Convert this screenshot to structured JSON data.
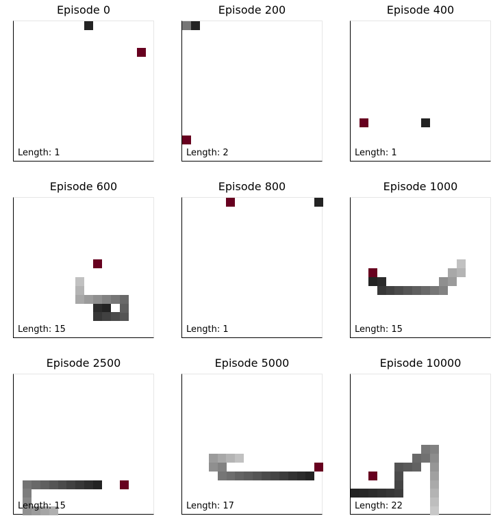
{
  "grid": {
    "cols": 16,
    "rows": 16
  },
  "colors": {
    "food": "#67001f"
  },
  "panels": [
    {
      "title": "Episode 0",
      "length_label": "Length: 1",
      "food": [
        14,
        3
      ],
      "snake": [
        [
          8,
          0,
          0.88
        ]
      ]
    },
    {
      "title": "Episode 200",
      "length_label": "Length: 2",
      "food": [
        0,
        13
      ],
      "snake": [
        [
          1,
          0,
          0.88
        ],
        [
          0,
          0,
          0.55
        ]
      ]
    },
    {
      "title": "Episode 400",
      "length_label": "Length: 1",
      "food": [
        1,
        11
      ],
      "snake": [
        [
          8,
          11,
          0.88
        ]
      ]
    },
    {
      "title": "Episode 600",
      "length_label": "Length: 15",
      "food": [
        9,
        7
      ],
      "snake": [
        [
          10,
          12,
          0.88
        ],
        [
          9,
          12,
          0.85
        ],
        [
          9,
          13,
          0.8
        ],
        [
          10,
          13,
          0.76
        ],
        [
          11,
          13,
          0.72
        ],
        [
          12,
          13,
          0.68
        ],
        [
          12,
          12,
          0.64
        ],
        [
          12,
          11,
          0.6
        ],
        [
          11,
          11,
          0.55
        ],
        [
          10,
          11,
          0.5
        ],
        [
          9,
          11,
          0.45
        ],
        [
          8,
          11,
          0.4
        ],
        [
          7,
          11,
          0.35
        ],
        [
          7,
          10,
          0.3
        ],
        [
          7,
          9,
          0.25
        ]
      ]
    },
    {
      "title": "Episode 800",
      "length_label": "Length: 1",
      "food": [
        5,
        0
      ],
      "snake": [
        [
          15,
          0,
          0.88
        ]
      ]
    },
    {
      "title": "Episode 1000",
      "length_label": "Length: 15",
      "food": [
        2,
        8
      ],
      "snake": [
        [
          2,
          9,
          0.88
        ],
        [
          3,
          9,
          0.85
        ],
        [
          3,
          10,
          0.8
        ],
        [
          4,
          10,
          0.76
        ],
        [
          5,
          10,
          0.72
        ],
        [
          6,
          10,
          0.68
        ],
        [
          7,
          10,
          0.64
        ],
        [
          8,
          10,
          0.6
        ],
        [
          9,
          10,
          0.55
        ],
        [
          10,
          10,
          0.5
        ],
        [
          10,
          9,
          0.45
        ],
        [
          11,
          9,
          0.4
        ],
        [
          11,
          8,
          0.35
        ],
        [
          12,
          8,
          0.3
        ],
        [
          12,
          7,
          0.25
        ]
      ]
    },
    {
      "title": "Episode 2500",
      "length_label": "Length: 15",
      "food": [
        12,
        12
      ],
      "snake": [
        [
          9,
          12,
          0.88
        ],
        [
          8,
          12,
          0.84
        ],
        [
          7,
          12,
          0.8
        ],
        [
          6,
          12,
          0.76
        ],
        [
          5,
          12,
          0.72
        ],
        [
          4,
          12,
          0.68
        ],
        [
          3,
          12,
          0.64
        ],
        [
          2,
          12,
          0.6
        ],
        [
          1,
          12,
          0.56
        ],
        [
          1,
          13,
          0.52
        ],
        [
          1,
          14,
          0.48
        ],
        [
          1,
          15,
          0.44
        ],
        [
          2,
          15,
          0.4
        ],
        [
          3,
          15,
          0.36
        ],
        [
          4,
          15,
          0.32
        ]
      ]
    },
    {
      "title": "Episode 5000",
      "length_label": "Length: 17",
      "food": [
        15,
        10
      ],
      "snake": [
        [
          14,
          11,
          0.88
        ],
        [
          13,
          11,
          0.85
        ],
        [
          12,
          11,
          0.82
        ],
        [
          11,
          11,
          0.78
        ],
        [
          10,
          11,
          0.75
        ],
        [
          9,
          11,
          0.72
        ],
        [
          8,
          11,
          0.68
        ],
        [
          7,
          11,
          0.65
        ],
        [
          6,
          11,
          0.62
        ],
        [
          5,
          11,
          0.58
        ],
        [
          4,
          11,
          0.55
        ],
        [
          4,
          10,
          0.5
        ],
        [
          3,
          10,
          0.45
        ],
        [
          3,
          9,
          0.4
        ],
        [
          4,
          9,
          0.35
        ],
        [
          5,
          9,
          0.3
        ],
        [
          6,
          9,
          0.25
        ]
      ]
    },
    {
      "title": "Episode 10000",
      "length_label": "Length: 22",
      "food": [
        2,
        11
      ],
      "snake": [
        [
          0,
          13,
          0.88
        ],
        [
          1,
          13,
          0.86
        ],
        [
          2,
          13,
          0.84
        ],
        [
          3,
          13,
          0.82
        ],
        [
          4,
          13,
          0.8
        ],
        [
          5,
          13,
          0.78
        ],
        [
          5,
          12,
          0.75
        ],
        [
          5,
          11,
          0.72
        ],
        [
          5,
          10,
          0.69
        ],
        [
          6,
          10,
          0.66
        ],
        [
          7,
          10,
          0.63
        ],
        [
          7,
          9,
          0.6
        ],
        [
          8,
          9,
          0.57
        ],
        [
          8,
          8,
          0.54
        ],
        [
          9,
          8,
          0.5
        ],
        [
          9,
          9,
          0.46
        ],
        [
          9,
          10,
          0.42
        ],
        [
          9,
          11,
          0.38
        ],
        [
          9,
          12,
          0.34
        ],
        [
          9,
          13,
          0.3
        ],
        [
          9,
          14,
          0.26
        ],
        [
          9,
          15,
          0.22
        ]
      ]
    }
  ]
}
